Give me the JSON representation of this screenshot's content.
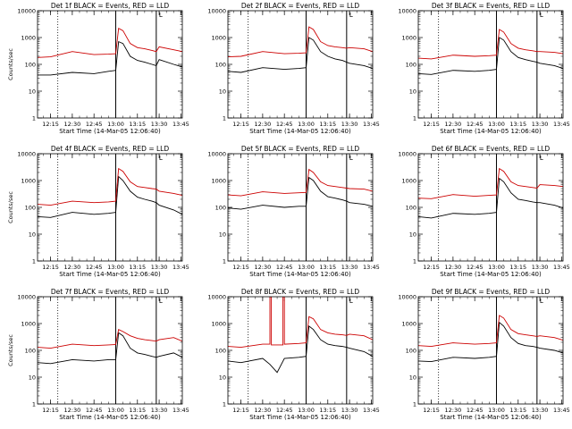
{
  "chart_data": [
    {
      "type": "line",
      "title": "Det 1f BLACK = Events, RED = LLD",
      "xlabel": "Start Time (14-Mar-05 12:06:40)",
      "ylabel": "Counts/sec",
      "y_scale": "log",
      "ylim": [
        1,
        10000
      ],
      "y_ticks": [
        "1",
        "10",
        "100",
        "1000",
        "10000"
      ],
      "x_ticks": [
        "12:15",
        "12:30",
        "12:45",
        "13:00",
        "13:15",
        "13:30",
        "13:45"
      ],
      "flag": "L",
      "series": [
        {
          "name": "Events",
          "color": "#000000",
          "x": [
            "12:06",
            "12:15",
            "12:30",
            "12:45",
            "12:55",
            "13:00",
            "13:02",
            "13:05",
            "13:10",
            "13:15",
            "13:20",
            "13:25",
            "13:28",
            "13:30",
            "13:40",
            "13:46"
          ],
          "y": [
            40,
            40,
            50,
            45,
            55,
            60,
            700,
            600,
            200,
            140,
            120,
            100,
            90,
            150,
            100,
            80
          ]
        },
        {
          "name": "LLD",
          "color": "#cc0000",
          "x": [
            "12:06",
            "12:15",
            "12:30",
            "12:45",
            "12:55",
            "13:00",
            "13:02",
            "13:05",
            "13:10",
            "13:15",
            "13:20",
            "13:25",
            "13:28",
            "13:30",
            "13:40",
            "13:46"
          ],
          "y": [
            180,
            190,
            300,
            230,
            240,
            250,
            2200,
            1800,
            600,
            420,
            380,
            330,
            300,
            450,
            350,
            300
          ]
        }
      ]
    },
    {
      "type": "line",
      "title": "Det 2f BLACK = Events, RED = LLD",
      "xlabel": "Start Time (14-Mar-05 12:06:40)",
      "ylabel": "",
      "y_scale": "log",
      "ylim": [
        1,
        10000
      ],
      "y_ticks": [
        "1",
        "10",
        "100",
        "1000",
        "10000"
      ],
      "x_ticks": [
        "12:15",
        "12:30",
        "12:45",
        "13:00",
        "13:15",
        "13:30",
        "13:45"
      ],
      "flag": "L",
      "series": [
        {
          "name": "Events",
          "color": "#000000",
          "x": [
            "12:06",
            "12:15",
            "12:30",
            "12:45",
            "12:55",
            "13:00",
            "13:02",
            "13:05",
            "13:10",
            "13:15",
            "13:20",
            "13:25",
            "13:28",
            "13:30",
            "13:40",
            "13:46"
          ],
          "y": [
            55,
            50,
            75,
            65,
            70,
            75,
            1000,
            800,
            300,
            200,
            160,
            140,
            120,
            110,
            90,
            70
          ]
        },
        {
          "name": "LLD",
          "color": "#cc0000",
          "x": [
            "12:06",
            "12:15",
            "12:30",
            "12:45",
            "12:55",
            "13:00",
            "13:02",
            "13:05",
            "13:10",
            "13:15",
            "13:20",
            "13:25",
            "13:28",
            "13:30",
            "13:40",
            "13:46"
          ],
          "y": [
            190,
            200,
            300,
            250,
            260,
            270,
            2500,
            2000,
            700,
            500,
            450,
            420,
            400,
            420,
            380,
            300
          ]
        }
      ]
    },
    {
      "type": "line",
      "title": "Det 3f BLACK = Events, RED = LLD",
      "xlabel": "Start Time (14-Mar-05 12:06:40)",
      "ylabel": "",
      "y_scale": "log",
      "ylim": [
        1,
        10000
      ],
      "y_ticks": [
        "1",
        "10",
        "100",
        "1000",
        "10000"
      ],
      "x_ticks": [
        "12:15",
        "12:30",
        "12:45",
        "13:00",
        "13:15",
        "13:30",
        "13:45"
      ],
      "flag": "L",
      "series": [
        {
          "name": "Events",
          "color": "#000000",
          "x": [
            "12:06",
            "12:15",
            "12:30",
            "12:45",
            "12:55",
            "13:00",
            "13:02",
            "13:05",
            "13:10",
            "13:15",
            "13:20",
            "13:25",
            "13:28",
            "13:30",
            "13:40",
            "13:46"
          ],
          "y": [
            45,
            42,
            60,
            55,
            60,
            65,
            1000,
            800,
            300,
            180,
            150,
            130,
            120,
            110,
            90,
            70
          ]
        },
        {
          "name": "LLD",
          "color": "#cc0000",
          "x": [
            "12:06",
            "12:15",
            "12:30",
            "12:45",
            "12:55",
            "13:00",
            "13:02",
            "13:05",
            "13:10",
            "13:15",
            "13:20",
            "13:25",
            "13:28",
            "13:30",
            "13:40",
            "13:46"
          ],
          "y": [
            170,
            160,
            220,
            200,
            210,
            220,
            2000,
            1600,
            600,
            400,
            350,
            320,
            300,
            300,
            280,
            250
          ]
        }
      ]
    },
    {
      "type": "line",
      "title": "Det 4f BLACK = Events, RED = LLD",
      "xlabel": "Start Time (14-Mar-05 12:06:40)",
      "ylabel": "Counts/sec",
      "y_scale": "log",
      "ylim": [
        1,
        10000
      ],
      "y_ticks": [
        "1",
        "10",
        "100",
        "1000",
        "10000"
      ],
      "x_ticks": [
        "12:15",
        "12:30",
        "12:45",
        "13:00",
        "13:15",
        "13:30",
        "13:45"
      ],
      "flag": "L",
      "series": [
        {
          "name": "Events",
          "color": "#000000",
          "x": [
            "12:06",
            "12:15",
            "12:30",
            "12:45",
            "12:55",
            "13:00",
            "13:02",
            "13:05",
            "13:10",
            "13:15",
            "13:20",
            "13:25",
            "13:28",
            "13:30",
            "13:40",
            "13:46"
          ],
          "y": [
            45,
            42,
            65,
            55,
            60,
            65,
            1400,
            1000,
            400,
            240,
            200,
            170,
            150,
            120,
            80,
            55
          ]
        },
        {
          "name": "LLD",
          "color": "#cc0000",
          "x": [
            "12:06",
            "12:15",
            "12:30",
            "12:45",
            "12:55",
            "13:00",
            "13:02",
            "13:05",
            "13:10",
            "13:15",
            "13:20",
            "13:25",
            "13:28",
            "13:30",
            "13:40",
            "13:46"
          ],
          "y": [
            130,
            120,
            170,
            150,
            160,
            170,
            2800,
            2200,
            900,
            600,
            550,
            500,
            480,
            400,
            330,
            280
          ]
        }
      ]
    },
    {
      "type": "line",
      "title": "Det 5f BLACK = Events, RED = LLD",
      "xlabel": "Start Time (14-Mar-05 12:06:40)",
      "ylabel": "",
      "y_scale": "log",
      "ylim": [
        1,
        10000
      ],
      "y_ticks": [
        "1",
        "10",
        "100",
        "1000",
        "10000"
      ],
      "x_ticks": [
        "12:15",
        "12:30",
        "12:45",
        "13:00",
        "13:15",
        "13:30",
        "13:45"
      ],
      "flag": "L",
      "series": [
        {
          "name": "Events",
          "color": "#000000",
          "x": [
            "12:06",
            "12:15",
            "12:30",
            "12:45",
            "12:55",
            "13:00",
            "13:02",
            "13:05",
            "13:10",
            "13:15",
            "13:20",
            "13:25",
            "13:28",
            "13:30",
            "13:40",
            "13:46"
          ],
          "y": [
            95,
            85,
            120,
            100,
            110,
            110,
            1300,
            1000,
            400,
            250,
            220,
            190,
            170,
            150,
            130,
            110
          ]
        },
        {
          "name": "LLD",
          "color": "#cc0000",
          "x": [
            "12:06",
            "12:15",
            "12:30",
            "12:45",
            "12:55",
            "13:00",
            "13:02",
            "13:05",
            "13:10",
            "13:15",
            "13:20",
            "13:25",
            "13:28",
            "13:30",
            "13:40",
            "13:46"
          ],
          "y": [
            290,
            270,
            380,
            330,
            350,
            360,
            2600,
            2000,
            900,
            650,
            600,
            550,
            520,
            500,
            480,
            400
          ]
        }
      ]
    },
    {
      "type": "line",
      "title": "Det 6f BLACK = Events, RED = LLD",
      "xlabel": "Start Time (14-Mar-05 12:06:40)",
      "ylabel": "",
      "y_scale": "log",
      "ylim": [
        1,
        10000
      ],
      "y_ticks": [
        "1",
        "10",
        "100",
        "1000",
        "10000"
      ],
      "x_ticks": [
        "12:15",
        "12:30",
        "12:45",
        "13:00",
        "13:15",
        "13:30",
        "13:45"
      ],
      "flag": "L",
      "series": [
        {
          "name": "Events",
          "color": "#000000",
          "x": [
            "12:06",
            "12:15",
            "12:30",
            "12:45",
            "12:55",
            "13:00",
            "13:02",
            "13:05",
            "13:10",
            "13:15",
            "13:20",
            "13:25",
            "13:28",
            "13:30",
            "13:40",
            "13:46"
          ],
          "y": [
            45,
            40,
            60,
            55,
            60,
            65,
            1200,
            900,
            350,
            200,
            180,
            160,
            150,
            150,
            120,
            95
          ]
        },
        {
          "name": "LLD",
          "color": "#cc0000",
          "x": [
            "12:06",
            "12:15",
            "12:30",
            "12:45",
            "12:55",
            "13:00",
            "13:02",
            "13:05",
            "13:10",
            "13:15",
            "13:20",
            "13:25",
            "13:28",
            "13:30",
            "13:40",
            "13:46"
          ],
          "y": [
            220,
            210,
            300,
            260,
            280,
            290,
            2800,
            2200,
            900,
            650,
            600,
            550,
            520,
            700,
            650,
            600
          ]
        }
      ]
    },
    {
      "type": "line",
      "title": "Det 7f BLACK = Events, RED = LLD",
      "xlabel": "Start Time (14-Mar-05 12:06:40)",
      "ylabel": "Counts/sec",
      "y_scale": "log",
      "ylim": [
        1,
        10000
      ],
      "y_ticks": [
        "1",
        "10",
        "100",
        "1000",
        "10000"
      ],
      "x_ticks": [
        "12:15",
        "12:30",
        "12:45",
        "13:00",
        "13:15",
        "13:30",
        "13:45"
      ],
      "flag": "L",
      "series": [
        {
          "name": "Events",
          "color": "#000000",
          "x": [
            "12:06",
            "12:15",
            "12:30",
            "12:45",
            "12:55",
            "13:00",
            "13:02",
            "13:05",
            "13:10",
            "13:15",
            "13:20",
            "13:25",
            "13:28",
            "13:30",
            "13:40",
            "13:46"
          ],
          "y": [
            35,
            32,
            45,
            40,
            45,
            45,
            450,
            350,
            120,
            80,
            70,
            60,
            55,
            60,
            80,
            55
          ]
        },
        {
          "name": "LLD",
          "color": "#cc0000",
          "x": [
            "12:06",
            "12:15",
            "12:30",
            "12:45",
            "12:55",
            "13:00",
            "13:02",
            "13:05",
            "13:10",
            "13:15",
            "13:20",
            "13:25",
            "13:28",
            "13:30",
            "13:40",
            "13:46"
          ],
          "y": [
            130,
            120,
            170,
            150,
            160,
            165,
            600,
            500,
            350,
            280,
            250,
            230,
            220,
            250,
            300,
            220
          ]
        }
      ]
    },
    {
      "type": "line",
      "title": "Det 8f BLACK = Events, RED = LLD",
      "xlabel": "Start Time (14-Mar-05 12:06:40)",
      "ylabel": "",
      "y_scale": "log",
      "ylim": [
        1,
        10000
      ],
      "y_ticks": [
        "1",
        "10",
        "100",
        "1000",
        "10000"
      ],
      "x_ticks": [
        "12:15",
        "12:30",
        "12:45",
        "13:00",
        "13:15",
        "13:30",
        "13:45"
      ],
      "flag": "L",
      "series": [
        {
          "name": "Events",
          "color": "#000000",
          "x": [
            "12:06",
            "12:15",
            "12:30",
            "12:35",
            "12:40",
            "12:45",
            "12:55",
            "13:00",
            "13:02",
            "13:05",
            "13:10",
            "13:15",
            "13:20",
            "13:25",
            "13:28",
            "13:30",
            "13:40",
            "13:46"
          ],
          "y": [
            40,
            35,
            50,
            30,
            15,
            50,
            55,
            60,
            800,
            600,
            250,
            170,
            150,
            140,
            130,
            120,
            90,
            60
          ]
        },
        {
          "name": "LLD",
          "color": "#cc0000",
          "x": [
            "12:06",
            "12:15",
            "12:30",
            "12:35",
            "12:35",
            "12:36",
            "12:36",
            "12:44",
            "12:44",
            "12:45",
            "12:45",
            "12:55",
            "13:00",
            "13:02",
            "13:05",
            "13:10",
            "13:15",
            "13:20",
            "13:25",
            "13:28",
            "13:30",
            "13:40",
            "13:46"
          ],
          "y": [
            140,
            130,
            170,
            170,
            10000,
            10000,
            160,
            160,
            10000,
            10000,
            170,
            180,
            190,
            1800,
            1500,
            600,
            450,
            400,
            380,
            360,
            400,
            350,
            250
          ]
        }
      ]
    },
    {
      "type": "line",
      "title": "Det 9f BLACK = Events, RED = LLD",
      "xlabel": "Start Time (14-Mar-05 12:06:40)",
      "ylabel": "",
      "y_scale": "log",
      "ylim": [
        1,
        10000
      ],
      "y_ticks": [
        "1",
        "10",
        "100",
        "1000",
        "10000"
      ],
      "x_ticks": [
        "12:15",
        "12:30",
        "12:45",
        "13:00",
        "13:15",
        "13:30",
        "13:45"
      ],
      "flag": "L",
      "series": [
        {
          "name": "Events",
          "color": "#000000",
          "x": [
            "12:06",
            "12:15",
            "12:30",
            "12:45",
            "12:55",
            "13:00",
            "13:02",
            "13:05",
            "13:10",
            "13:15",
            "13:20",
            "13:25",
            "13:28",
            "13:30",
            "13:40",
            "13:46"
          ],
          "y": [
            40,
            38,
            55,
            50,
            55,
            60,
            1100,
            800,
            300,
            180,
            150,
            140,
            130,
            120,
            100,
            80
          ]
        },
        {
          "name": "LLD",
          "color": "#cc0000",
          "x": [
            "12:06",
            "12:15",
            "12:30",
            "12:45",
            "12:55",
            "13:00",
            "13:02",
            "13:05",
            "13:10",
            "13:15",
            "13:20",
            "13:25",
            "13:28",
            "13:30",
            "13:40",
            "13:46"
          ],
          "y": [
            150,
            140,
            190,
            170,
            180,
            190,
            2000,
            1600,
            600,
            420,
            380,
            350,
            330,
            350,
            300,
            240
          ]
        }
      ]
    }
  ]
}
